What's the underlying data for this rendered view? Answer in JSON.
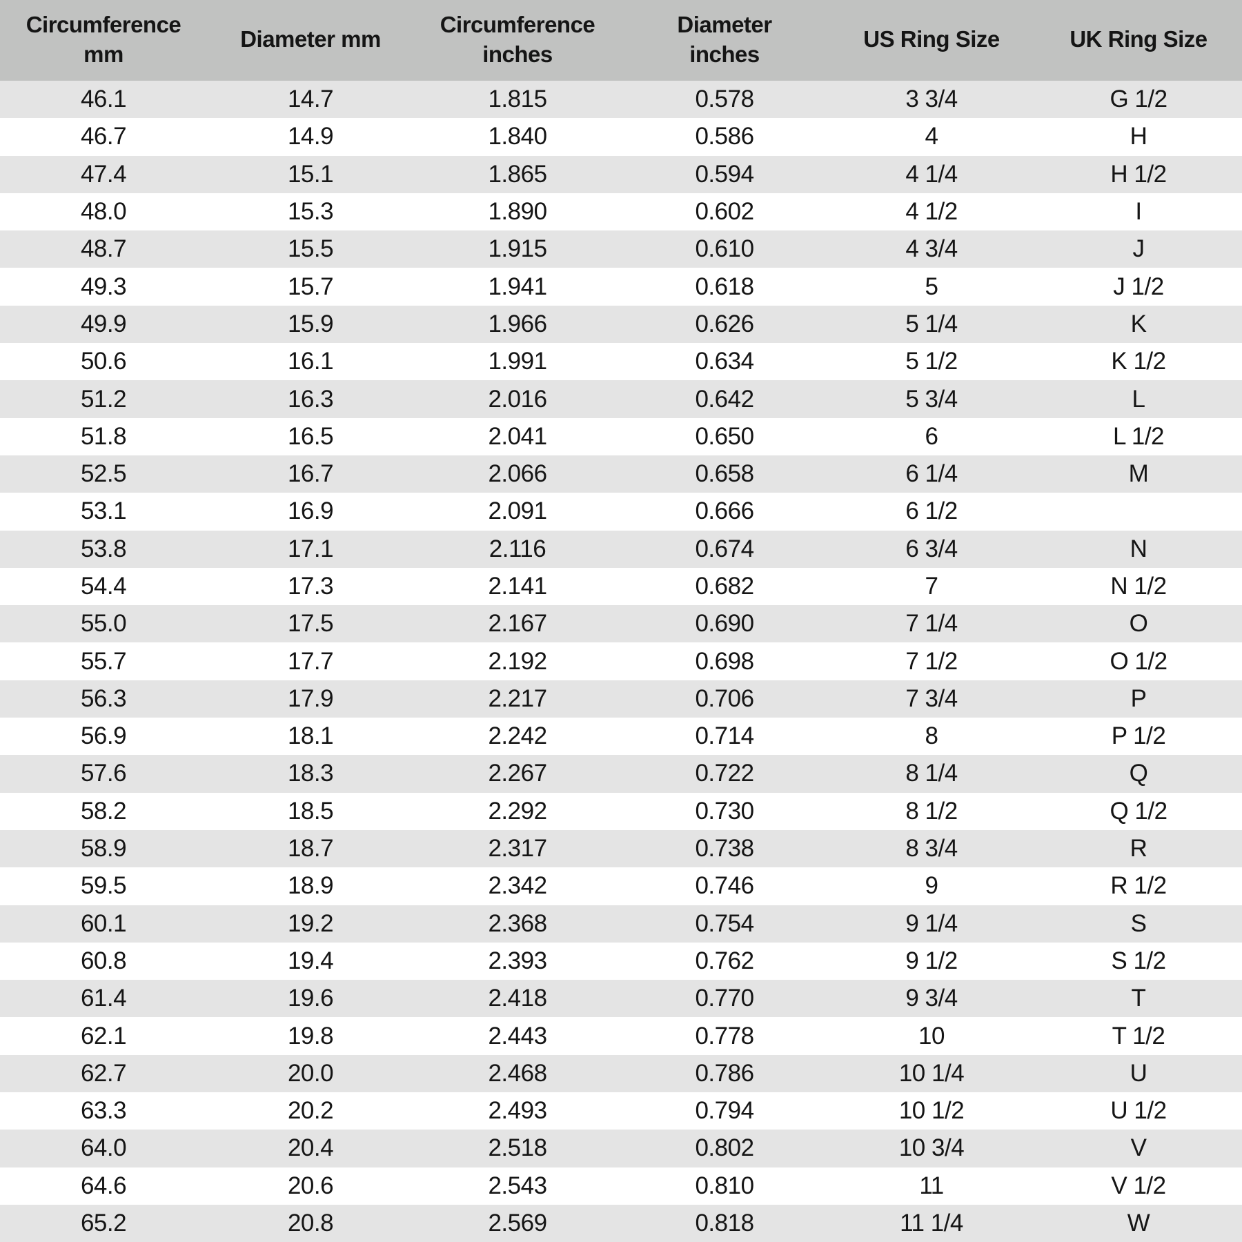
{
  "headers": [
    "Circumference mm",
    "Diameter mm",
    "Circumference inches",
    "Diameter inches",
    "US Ring Size",
    "UK Ring Size"
  ],
  "header_lines": [
    [
      "Circumference",
      "mm"
    ],
    [
      "Diameter mm"
    ],
    [
      "Circumference",
      "inches"
    ],
    [
      "Diameter",
      "inches"
    ],
    [
      "US Ring Size"
    ],
    [
      "UK Ring Size"
    ]
  ],
  "rows": [
    [
      "46.1",
      "14.7",
      "1.815",
      "0.578",
      "3 3/4",
      "G 1/2"
    ],
    [
      "46.7",
      "14.9",
      "1.840",
      "0.586",
      "4",
      "H"
    ],
    [
      "47.4",
      "15.1",
      "1.865",
      "0.594",
      "4 1/4",
      "H 1/2"
    ],
    [
      "48.0",
      "15.3",
      "1.890",
      "0.602",
      "4 1/2",
      "I"
    ],
    [
      "48.7",
      "15.5",
      "1.915",
      "0.610",
      "4 3/4",
      "J"
    ],
    [
      "49.3",
      "15.7",
      "1.941",
      "0.618",
      "5",
      "J 1/2"
    ],
    [
      "49.9",
      "15.9",
      "1.966",
      "0.626",
      "5 1/4",
      "K"
    ],
    [
      "50.6",
      "16.1",
      "1.991",
      "0.634",
      "5 1/2",
      "K 1/2"
    ],
    [
      "51.2",
      "16.3",
      "2.016",
      "0.642",
      "5 3/4",
      "L"
    ],
    [
      "51.8",
      "16.5",
      "2.041",
      "0.650",
      "6",
      "L 1/2"
    ],
    [
      "52.5",
      "16.7",
      "2.066",
      "0.658",
      "6 1/4",
      "M"
    ],
    [
      "53.1",
      "16.9",
      "2.091",
      "0.666",
      "6 1/2",
      ""
    ],
    [
      "53.8",
      "17.1",
      "2.116",
      "0.674",
      "6 3/4",
      "N"
    ],
    [
      "54.4",
      "17.3",
      "2.141",
      "0.682",
      "7",
      "N 1/2"
    ],
    [
      "55.0",
      "17.5",
      "2.167",
      "0.690",
      "7 1/4",
      "O"
    ],
    [
      "55.7",
      "17.7",
      "2.192",
      "0.698",
      "7 1/2",
      "O 1/2"
    ],
    [
      "56.3",
      "17.9",
      "2.217",
      "0.706",
      "7 3/4",
      "P"
    ],
    [
      "56.9",
      "18.1",
      "2.242",
      "0.714",
      "8",
      "P 1/2"
    ],
    [
      "57.6",
      "18.3",
      "2.267",
      "0.722",
      "8 1/4",
      "Q"
    ],
    [
      "58.2",
      "18.5",
      "2.292",
      "0.730",
      "8 1/2",
      "Q 1/2"
    ],
    [
      "58.9",
      "18.7",
      "2.317",
      "0.738",
      "8 3/4",
      "R"
    ],
    [
      "59.5",
      "18.9",
      "2.342",
      "0.746",
      "9",
      "R 1/2"
    ],
    [
      "60.1",
      "19.2",
      "2.368",
      "0.754",
      "9 1/4",
      "S"
    ],
    [
      "60.8",
      "19.4",
      "2.393",
      "0.762",
      "9 1/2",
      "S 1/2"
    ],
    [
      "61.4",
      "19.6",
      "2.418",
      "0.770",
      "9 3/4",
      "T"
    ],
    [
      "62.1",
      "19.8",
      "2.443",
      "0.778",
      "10",
      "T 1/2"
    ],
    [
      "62.7",
      "20.0",
      "2.468",
      "0.786",
      "10 1/4",
      "U"
    ],
    [
      "63.3",
      "20.2",
      "2.493",
      "0.794",
      "10 1/2",
      "U 1/2"
    ],
    [
      "64.0",
      "20.4",
      "2.518",
      "0.802",
      "10 3/4",
      "V"
    ],
    [
      "64.6",
      "20.6",
      "2.543",
      "0.810",
      "11",
      "V 1/2"
    ],
    [
      "65.2",
      "20.8",
      "2.569",
      "0.818",
      "11 1/4",
      "W"
    ]
  ]
}
